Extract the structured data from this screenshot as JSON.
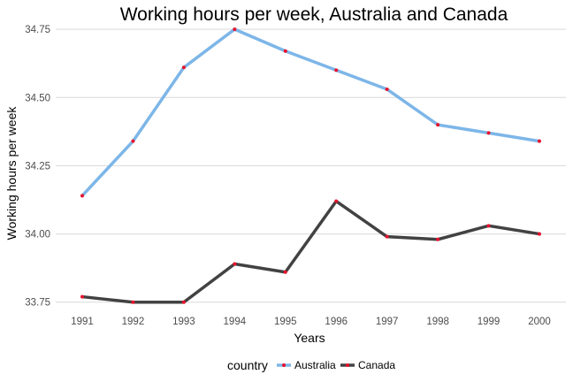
{
  "chart_data": {
    "type": "line",
    "title": "Working hours per week, Australia and Canada",
    "xlabel": "Years",
    "ylabel": "Working hours per week",
    "x": [
      1991,
      1992,
      1993,
      1994,
      1995,
      1996,
      1997,
      1998,
      1999,
      2000
    ],
    "ylim": [
      33.72,
      34.76
    ],
    "yticks": [
      33.75,
      34.0,
      34.25,
      34.5,
      34.75
    ],
    "ytick_labels": [
      "33.75",
      "34.00",
      "34.25",
      "34.50",
      "34.75"
    ],
    "xtick_labels": [
      "1991",
      "1992",
      "1993",
      "1994",
      "1995",
      "1996",
      "1997",
      "1998",
      "1999",
      "2000"
    ],
    "grid": "horizontal",
    "legend": {
      "title": "country",
      "position": "bottom"
    },
    "point_color": "#e8112d",
    "series": [
      {
        "name": "Australia",
        "color": "#7db6e8",
        "values": [
          34.14,
          34.34,
          34.61,
          34.75,
          34.67,
          34.6,
          34.53,
          34.4,
          34.37,
          34.34
        ]
      },
      {
        "name": "Canada",
        "color": "#424242",
        "values": [
          33.77,
          33.75,
          33.75,
          33.89,
          33.86,
          34.12,
          33.99,
          33.98,
          34.03,
          34.0
        ]
      }
    ]
  }
}
